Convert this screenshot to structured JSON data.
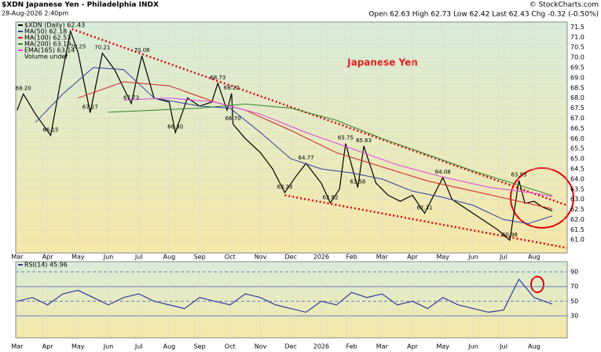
{
  "header": {
    "symbol": "$XDN Japanese Yen - Philadelphia INDX",
    "date": "28-Aug-2026 2:40pm",
    "quote": "Open 62.63 High 62.73 Low 62.42 Last 62.43 Chg -0.32 (-0.50%)",
    "source": "© StockCharts.com"
  },
  "chart_data": [
    {
      "type": "line",
      "title": "Japanese Yen",
      "legend_extra": "Volume undef",
      "xlim": [
        -0.05,
        18.09
      ],
      "ylim": [
        60.35,
        71.75
      ],
      "xticks": [
        {
          "value": 0,
          "label": "Mar"
        },
        {
          "value": 1,
          "label": "Apr"
        },
        {
          "value": 2,
          "label": "May"
        },
        {
          "value": 3,
          "label": "Jun"
        },
        {
          "value": 4,
          "label": "Jul"
        },
        {
          "value": 5,
          "label": "Aug"
        },
        {
          "value": 6,
          "label": "Sep"
        },
        {
          "value": 7,
          "label": "Oct"
        },
        {
          "value": 8,
          "label": "Nov"
        },
        {
          "value": 9,
          "label": "Dec"
        },
        {
          "value": 10,
          "label": "2026"
        },
        {
          "value": 11,
          "label": "Feb"
        },
        {
          "value": 12,
          "label": "Mar"
        },
        {
          "value": 13,
          "label": "Apr"
        },
        {
          "value": 14,
          "label": "May"
        },
        {
          "value": 15,
          "label": "Jun"
        },
        {
          "value": 16,
          "label": "Jul"
        },
        {
          "value": 17,
          "label": "Aug"
        }
      ],
      "yticks": [
        {
          "value": 61,
          "label": "61.0"
        },
        61.5,
        {
          "value": 62,
          "label": "62.0"
        },
        62.5,
        {
          "value": 63,
          "label": "63.0"
        },
        63.5,
        {
          "value": 64,
          "label": "64.0"
        },
        64.5,
        {
          "value": 65,
          "label": "65.0"
        },
        65.5,
        {
          "value": 66,
          "label": "66.0"
        },
        66.5,
        {
          "value": 67,
          "label": "67.0"
        },
        67.5,
        {
          "value": 68,
          "label": "68.0"
        },
        68.5,
        {
          "value": 69,
          "label": "69.0"
        },
        69.5,
        {
          "value": 70,
          "label": "70.0"
        },
        70.5,
        {
          "value": 71,
          "label": "71.0"
        },
        71.5
      ],
      "series": [
        {
          "name": "$XDN (Daily) 62.43",
          "color": "#000000",
          "x": [
            0,
            0.2,
            0.6,
            1.1,
            1.4,
            1.75,
            2.0,
            2.4,
            2.8,
            3.2,
            3.75,
            4.1,
            4.5,
            5.0,
            5.2,
            5.6,
            6.0,
            6.4,
            6.6,
            6.9,
            7.05,
            7.1,
            7.5,
            8.0,
            8.4,
            8.8,
            9.2,
            9.5,
            10.0,
            10.3,
            10.6,
            10.8,
            11.2,
            11.4,
            11.8,
            12.2,
            12.6,
            13.0,
            13.4,
            14.0,
            14.3,
            14.8,
            15.3,
            15.8,
            16.2,
            16.5,
            16.7,
            17.0,
            17.3,
            17.6
          ],
          "values": [
            67.4,
            68.2,
            67.2,
            66.15,
            68.6,
            71.3,
            70.25,
            67.27,
            70.21,
            69.4,
            67.73,
            70.08,
            68.0,
            67.8,
            66.3,
            68.0,
            67.6,
            67.8,
            68.73,
            67.4,
            68.22,
            66.7,
            66.0,
            65.3,
            64.5,
            63.33,
            64.2,
            64.77,
            63.8,
            62.82,
            63.5,
            65.75,
            63.58,
            65.63,
            63.8,
            63.2,
            62.9,
            63.2,
            62.31,
            64.08,
            63.0,
            62.5,
            62.0,
            61.5,
            60.98,
            63.93,
            62.8,
            62.9,
            62.6,
            62.43
          ]
        },
        {
          "name": "MA(50) 62.18",
          "color": "#2f3fa0",
          "x": [
            0.6,
            1.5,
            2.5,
            3.5,
            4.5,
            6,
            7,
            8,
            9,
            10,
            11,
            12,
            13,
            14,
            15,
            16,
            16.8,
            17.6
          ],
          "values": [
            66.8,
            68.2,
            69.5,
            69.4,
            68.0,
            67.6,
            67.5,
            66.3,
            65.0,
            64.5,
            64.3,
            64.0,
            63.4,
            63.1,
            62.7,
            62.0,
            61.8,
            62.18
          ]
        },
        {
          "name": "MA(100) 62.53",
          "color": "#d02020",
          "x": [
            2,
            3.5,
            5,
            6.5,
            7.5,
            9,
            10.5,
            12,
            13.5,
            15,
            16.5,
            17.6
          ],
          "values": [
            68.0,
            68.8,
            68.6,
            67.8,
            67.4,
            66.4,
            65.3,
            64.6,
            63.9,
            63.4,
            62.9,
            62.53
          ]
        },
        {
          "name": "MA(200) 63.19",
          "color": "#2a8a2a",
          "x": [
            3,
            4.5,
            6,
            7.5,
            9,
            10.5,
            12,
            13.5,
            15,
            16.5,
            17.6
          ],
          "values": [
            67.3,
            67.4,
            67.5,
            67.7,
            67.5,
            66.9,
            66.0,
            65.2,
            64.4,
            63.7,
            63.19
          ]
        },
        {
          "name": "EMA(165) 63.14",
          "color": "#e040e0",
          "x": [
            3.5,
            5,
            6.5,
            8,
            9.5,
            11,
            12.5,
            14,
            15.5,
            17,
            17.6
          ],
          "values": [
            67.9,
            68.0,
            67.8,
            67.2,
            66.3,
            65.5,
            64.7,
            64.1,
            63.6,
            63.3,
            63.14
          ]
        }
      ],
      "annotations": [
        {
          "x": 0.2,
          "value": 68.2,
          "label": "68.20"
        },
        {
          "x": 1.1,
          "value": 66.15,
          "label": "66.15"
        },
        {
          "x": 2.0,
          "value": 70.25,
          "label": "70.25"
        },
        {
          "x": 2.4,
          "value": 67.27,
          "label": "67.27"
        },
        {
          "x": 2.8,
          "value": 70.21,
          "label": "70.21"
        },
        {
          "x": 4.1,
          "value": 70.08,
          "label": "70.08"
        },
        {
          "x": 3.75,
          "value": 67.73,
          "label": "67.73"
        },
        {
          "x": 5.2,
          "value": 66.3,
          "label": "66.30"
        },
        {
          "x": 6.6,
          "value": 68.73,
          "label": "68.73"
        },
        {
          "x": 7.05,
          "value": 68.22,
          "label": "68.22"
        },
        {
          "x": 7.1,
          "value": 66.7,
          "label": "66.70"
        },
        {
          "x": 8.8,
          "value": 63.33,
          "label": "63.33"
        },
        {
          "x": 9.5,
          "value": 64.77,
          "label": "64.77"
        },
        {
          "x": 10.3,
          "value": 62.82,
          "label": "62.82"
        },
        {
          "x": 10.8,
          "value": 65.75,
          "label": "65.75"
        },
        {
          "x": 11.4,
          "value": 65.63,
          "label": "65.63"
        },
        {
          "x": 11.2,
          "value": 63.58,
          "label": "63.58"
        },
        {
          "x": 14.0,
          "value": 64.08,
          "label": "64.08"
        },
        {
          "x": 13.4,
          "value": 62.31,
          "label": "62.31"
        },
        {
          "x": 16.2,
          "value": 60.98,
          "label": "60.98"
        },
        {
          "x": 16.5,
          "value": 63.93,
          "label": "63.93"
        }
      ],
      "trendlines": [
        {
          "x": [
            1.8,
            18.09
          ],
          "values": [
            71.4,
            62.7
          ]
        },
        {
          "x": [
            8.8,
            18.09
          ],
          "values": [
            63.2,
            60.6
          ]
        }
      ]
    },
    {
      "type": "line",
      "xlim": [
        -0.05,
        18.09
      ],
      "ylim": [
        0,
        104
      ],
      "xticks": [
        {
          "value": 0,
          "label": "Mar"
        },
        {
          "value": 1,
          "label": "Apr"
        },
        {
          "value": 2,
          "label": "May"
        },
        {
          "value": 3,
          "label": "Jun"
        },
        {
          "value": 4,
          "label": "Jul"
        },
        {
          "value": 5,
          "label": "Aug"
        },
        {
          "value": 6,
          "label": "Sep"
        },
        {
          "value": 7,
          "label": "Oct"
        },
        {
          "value": 8,
          "label": "Nov"
        },
        {
          "value": 9,
          "label": "Dec"
        },
        {
          "value": 10,
          "label": "2026"
        },
        {
          "value": 11,
          "label": "Feb"
        },
        {
          "value": 12,
          "label": "Mar"
        },
        {
          "value": 13,
          "label": "Apr"
        },
        {
          "value": 14,
          "label": "May"
        },
        {
          "value": 15,
          "label": "Jun"
        },
        {
          "value": 16,
          "label": "Jul"
        },
        {
          "value": 17,
          "label": "Aug"
        }
      ],
      "yticks": [
        30,
        50,
        70,
        90
      ],
      "series": [
        {
          "name": "RSI(14) 45.96",
          "color": "#2f3fa0",
          "x": [
            0,
            0.5,
            1,
            1.5,
            2,
            2.5,
            3,
            3.5,
            4,
            4.5,
            5,
            5.5,
            6,
            6.5,
            7,
            7.5,
            8,
            8.5,
            9,
            9.5,
            10,
            10.5,
            11,
            11.5,
            12,
            12.5,
            13,
            13.5,
            14,
            14.5,
            15,
            15.5,
            16,
            16.5,
            17,
            17.6
          ],
          "values": [
            50,
            55,
            45,
            60,
            65,
            55,
            45,
            55,
            60,
            50,
            45,
            40,
            55,
            50,
            45,
            60,
            55,
            45,
            40,
            35,
            50,
            45,
            62,
            55,
            60,
            45,
            50,
            40,
            55,
            45,
            40,
            35,
            38,
            80,
            55,
            45.96
          ]
        }
      ]
    }
  ]
}
